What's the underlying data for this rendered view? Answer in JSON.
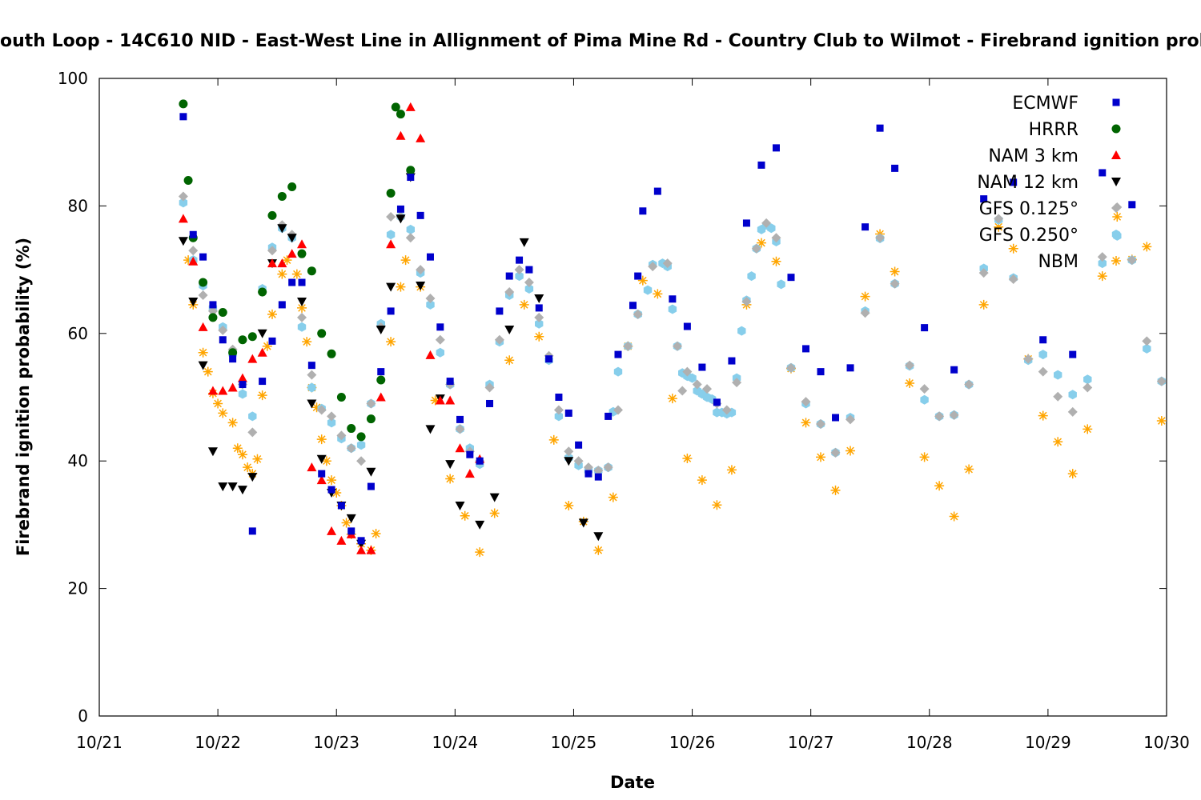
{
  "chart_data": {
    "type": "scatter",
    "title": "outh Loop - 14C610 NID - East-West Line in Allignment of Pima Mine Rd - Country Club to Wilmot - Firebrand ignition probability",
    "xlabel": "Date",
    "ylabel": "Firebrand ignition probability (%)",
    "x_units": "hours since 10/21 00:00",
    "xlim": [
      0,
      216
    ],
    "ylim": [
      0,
      100
    ],
    "x_ticks": [
      {
        "value": 0,
        "label": "10/21"
      },
      {
        "value": 24,
        "label": "10/22"
      },
      {
        "value": 48,
        "label": "10/23"
      },
      {
        "value": 72,
        "label": "10/24"
      },
      {
        "value": 96,
        "label": "10/25"
      },
      {
        "value": 120,
        "label": "10/26"
      },
      {
        "value": 144,
        "label": "10/27"
      },
      {
        "value": 168,
        "label": "10/28"
      },
      {
        "value": 192,
        "label": "10/29"
      },
      {
        "value": 216,
        "label": "10/30"
      }
    ],
    "y_ticks": [
      {
        "value": 0,
        "label": "0"
      },
      {
        "value": 20,
        "label": "20"
      },
      {
        "value": 40,
        "label": "40"
      },
      {
        "value": 60,
        "label": "60"
      },
      {
        "value": 80,
        "label": "80"
      },
      {
        "value": 100,
        "label": "100"
      }
    ],
    "grid": false,
    "legend_position": "top-right",
    "series": [
      {
        "name": "ECMWF",
        "marker": "square",
        "color": "#0000cc",
        "grid": {
          "start": 17,
          "step": 2,
          "values": [
            94,
            75.5,
            72,
            64.5,
            59,
            56,
            52,
            29,
            52.5,
            58.8,
            64.5,
            68,
            68,
            55,
            38,
            35.5,
            33,
            29,
            27.5,
            36,
            54,
            63.5,
            79.5,
            84.5,
            78.5,
            72,
            61,
            52.5,
            46.5,
            41,
            40,
            49,
            63.5,
            69,
            71.5,
            70,
            64,
            56,
            50,
            47.5,
            42.5,
            38,
            37.5,
            47,
            56.7
          ]
        },
        "points": [
          [
            108,
            64.4
          ],
          [
            109,
            69
          ],
          [
            110,
            79.2
          ],
          [
            113,
            82.3
          ],
          [
            116,
            65.4
          ],
          [
            119,
            61.1
          ],
          [
            122,
            54.7
          ],
          [
            125,
            49.2
          ],
          [
            128,
            55.7
          ],
          [
            131,
            77.3
          ],
          [
            134,
            86.4
          ],
          [
            137,
            89.1
          ],
          [
            140,
            68.8
          ],
          [
            143,
            57.6
          ],
          [
            146,
            54
          ],
          [
            149,
            46.8
          ],
          [
            152,
            54.6
          ],
          [
            155,
            76.7
          ],
          [
            158,
            92.2
          ],
          [
            161,
            85.9
          ],
          [
            167,
            60.9
          ],
          [
            173,
            54.3
          ],
          [
            179,
            81.1
          ],
          [
            185,
            83.7
          ],
          [
            191,
            59
          ],
          [
            197,
            56.7
          ],
          [
            203,
            85.2
          ],
          [
            209,
            80.2
          ]
        ]
      },
      {
        "name": "HRRR",
        "marker": "circle",
        "color": "#006400",
        "grid": {
          "start": 17,
          "step": 2,
          "values": [
            96,
            75,
            68,
            62.5,
            63.3,
            57,
            59,
            59.5,
            66.5,
            78.5,
            81.5,
            83,
            72.5,
            69.8,
            60,
            56.8,
            50,
            45.1,
            43.8,
            46.6,
            52.7,
            82,
            94.4,
            85.6
          ]
        },
        "points": [
          [
            18,
            84
          ],
          [
            60,
            95.5
          ]
        ]
      },
      {
        "name": "NAM 3 km",
        "marker": "triangle-up",
        "color": "#ff0000",
        "grid": {
          "start": 17,
          "step": 2,
          "values": [
            78,
            71.3,
            61,
            51,
            51,
            51.5,
            53,
            56,
            57,
            71,
            71,
            72.5,
            74,
            39,
            37,
            29,
            27.5,
            28.5,
            26,
            26,
            50,
            74,
            91,
            95.5,
            90.6,
            56.6,
            49.5,
            49.5,
            42,
            38,
            40.3
          ]
        },
        "points": []
      },
      {
        "name": "NAM 12 km",
        "marker": "triangle-down",
        "color": "#000000",
        "grid": {
          "start": 17,
          "step": 2,
          "values": [
            74.5,
            65,
            55,
            41.5,
            36,
            36,
            35.5,
            37.5,
            60,
            71,
            76.5,
            75,
            65,
            49,
            40.3,
            35,
            33,
            31,
            27,
            38.3,
            60.6,
            67.3,
            78,
            84.5
          ]
        },
        "points": [
          [
            65,
            67.5
          ],
          [
            67,
            45
          ],
          [
            69,
            49.8
          ],
          [
            71,
            39.5
          ],
          [
            73,
            33
          ],
          [
            77,
            30
          ],
          [
            80,
            34.3
          ],
          [
            83,
            60.6
          ],
          [
            86,
            74.3
          ],
          [
            89,
            65.5
          ],
          [
            95,
            40
          ],
          [
            98,
            30.3
          ],
          [
            101,
            28.2
          ]
        ]
      },
      {
        "name": "GFS 0.125°",
        "marker": "diamond",
        "color": "#b0b0b0",
        "grid": {
          "start": 17,
          "step": 2,
          "values": [
            81.5,
            73,
            66,
            63.5,
            60.5,
            57.5,
            52,
            44.5,
            66.5,
            73,
            77,
            75.5,
            62.5,
            53.5,
            48,
            47,
            44,
            42,
            40,
            49,
            61,
            78.3,
            78.3,
            75,
            70,
            65.5,
            59,
            52,
            45,
            41.5,
            40,
            51.5,
            59,
            66.5,
            70,
            68,
            62.5,
            56.5,
            48,
            41.5,
            40,
            39,
            38.5,
            39,
            48
          ]
        },
        "points": [
          [
            107,
            58
          ],
          [
            109,
            63
          ],
          [
            112,
            70.5
          ],
          [
            115,
            71
          ],
          [
            117,
            58
          ],
          [
            118,
            51
          ],
          [
            119,
            54
          ],
          [
            121,
            52
          ],
          [
            123,
            51.3
          ],
          [
            125,
            49
          ],
          [
            127,
            48
          ],
          [
            129,
            52.3
          ],
          [
            131,
            65
          ],
          [
            133,
            73.3
          ],
          [
            135,
            77.3
          ],
          [
            137,
            75
          ],
          [
            140,
            54.6
          ],
          [
            143,
            49.3
          ],
          [
            146,
            45.8
          ],
          [
            149,
            41.3
          ],
          [
            152,
            46.5
          ],
          [
            155,
            63.2
          ],
          [
            158,
            75
          ],
          [
            161,
            67.8
          ],
          [
            164,
            55
          ],
          [
            167,
            51.3
          ],
          [
            170,
            47
          ],
          [
            173,
            47.2
          ],
          [
            176,
            52
          ],
          [
            179,
            69.5
          ],
          [
            182,
            78
          ],
          [
            185,
            68.5
          ],
          [
            188,
            56
          ],
          [
            191,
            54
          ],
          [
            194,
            50.1
          ],
          [
            197,
            47.7
          ],
          [
            200,
            51.5
          ],
          [
            203,
            72
          ],
          [
            206,
            79.8
          ],
          [
            209,
            71.5
          ],
          [
            212,
            58.8
          ],
          [
            215,
            52.5
          ]
        ]
      },
      {
        "name": "GFS 0.250°",
        "marker": "pentagon",
        "color": "#87ceeb",
        "grid": {
          "start": 17,
          "step": 2,
          "values": [
            80.5,
            71.5,
            67.5,
            64,
            61,
            56.8,
            50.5,
            47,
            67,
            73.5,
            76.5,
            75,
            61,
            51.5,
            48.2,
            46,
            43.5,
            42,
            42.5,
            49,
            61.5,
            75.5,
            78.3,
            76.3,
            69.5,
            64.5,
            57,
            52,
            45,
            42,
            39.5,
            52,
            58.7,
            66,
            69,
            67,
            61.5,
            55.8,
            47,
            40.5,
            39.3,
            38.5,
            38.5,
            39,
            54
          ]
        },
        "points": [
          [
            104,
            47.7
          ],
          [
            107,
            58
          ],
          [
            109,
            63
          ],
          [
            111,
            66.8
          ],
          [
            112,
            70.8
          ],
          [
            114,
            71
          ],
          [
            115,
            70.5
          ],
          [
            116,
            63.8
          ],
          [
            117,
            58
          ],
          [
            118,
            53.8
          ],
          [
            119,
            53.3
          ],
          [
            120,
            53
          ],
          [
            121,
            51
          ],
          [
            122,
            50.5
          ],
          [
            123,
            50
          ],
          [
            124,
            49.7
          ],
          [
            125,
            47.6
          ],
          [
            126,
            47.6
          ],
          [
            127,
            47.4
          ],
          [
            128,
            47.6
          ],
          [
            129,
            53
          ],
          [
            130,
            60.4
          ],
          [
            131,
            65.2
          ],
          [
            132,
            69
          ],
          [
            133,
            73.3
          ],
          [
            134,
            76.3
          ],
          [
            135,
            77
          ],
          [
            136,
            76.5
          ],
          [
            137,
            74.4
          ],
          [
            138,
            67.7
          ],
          [
            140,
            54.6
          ],
          [
            143,
            49
          ],
          [
            146,
            45.8
          ],
          [
            149,
            41.3
          ],
          [
            152,
            46.8
          ],
          [
            155,
            63.5
          ],
          [
            158,
            74.9
          ],
          [
            161,
            67.8
          ],
          [
            164,
            54.9
          ],
          [
            167,
            49.6
          ],
          [
            170,
            47
          ],
          [
            173,
            47.2
          ],
          [
            176,
            52
          ],
          [
            179,
            70.2
          ],
          [
            182,
            77.8
          ],
          [
            185,
            68.7
          ],
          [
            188,
            55.8
          ],
          [
            191,
            56.7
          ],
          [
            194,
            53.5
          ],
          [
            197,
            50.4
          ],
          [
            200,
            52.8
          ],
          [
            203,
            71
          ],
          [
            206,
            75.3
          ],
          [
            209,
            71.5
          ],
          [
            212,
            57.6
          ],
          [
            215,
            52.5
          ]
        ]
      },
      {
        "name": "NBM",
        "marker": "asterisk",
        "color": "#ffa500",
        "grid": null,
        "points": [
          [
            18,
            71.5
          ],
          [
            19,
            64.5
          ],
          [
            21,
            57
          ],
          [
            22,
            54
          ],
          [
            23,
            50.6
          ],
          [
            24,
            49
          ],
          [
            25,
            47.5
          ],
          [
            27,
            46
          ],
          [
            28,
            42
          ],
          [
            29,
            41
          ],
          [
            30,
            39
          ],
          [
            31,
            38
          ],
          [
            32,
            40.3
          ],
          [
            33,
            50.3
          ],
          [
            34,
            58
          ],
          [
            35,
            63
          ],
          [
            37,
            69.3
          ],
          [
            38,
            71.5
          ],
          [
            40,
            69.3
          ],
          [
            41,
            64
          ],
          [
            42,
            58.7
          ],
          [
            43,
            51.5
          ],
          [
            44,
            48.4
          ],
          [
            45,
            43.4
          ],
          [
            46,
            40
          ],
          [
            47,
            37
          ],
          [
            48,
            35
          ],
          [
            49,
            33
          ],
          [
            50,
            30.3
          ],
          [
            51,
            28.5
          ],
          [
            53,
            27
          ],
          [
            55,
            26
          ],
          [
            56,
            28.6
          ],
          [
            59,
            58.7
          ],
          [
            61,
            67.3
          ],
          [
            62,
            71.5
          ],
          [
            65,
            67.3
          ],
          [
            68,
            49.5
          ],
          [
            71,
            37.2
          ],
          [
            74,
            31.4
          ],
          [
            77,
            25.7
          ],
          [
            80,
            31.8
          ],
          [
            83,
            55.8
          ],
          [
            86,
            64.5
          ],
          [
            89,
            59.5
          ],
          [
            92,
            43.3
          ],
          [
            95,
            33
          ],
          [
            98,
            30.5
          ],
          [
            101,
            26
          ],
          [
            104,
            34.3
          ],
          [
            107,
            58
          ],
          [
            110,
            68.3
          ],
          [
            113,
            66.2
          ],
          [
            116,
            49.8
          ],
          [
            119,
            40.4
          ],
          [
            122,
            37
          ],
          [
            125,
            33.1
          ],
          [
            128,
            38.6
          ],
          [
            131,
            64.5
          ],
          [
            134,
            74.2
          ],
          [
            137,
            71.3
          ],
          [
            140,
            54.5
          ],
          [
            143,
            46
          ],
          [
            146,
            40.6
          ],
          [
            149,
            35.4
          ],
          [
            152,
            41.6
          ],
          [
            155,
            65.8
          ],
          [
            158,
            75.6
          ],
          [
            161,
            69.7
          ],
          [
            164,
            52.2
          ],
          [
            167,
            40.6
          ],
          [
            170,
            36.1
          ],
          [
            173,
            31.3
          ],
          [
            176,
            38.7
          ],
          [
            179,
            64.5
          ],
          [
            182,
            76.7
          ],
          [
            185,
            73.3
          ],
          [
            188,
            56
          ],
          [
            191,
            47.1
          ],
          [
            194,
            43
          ],
          [
            197,
            38
          ],
          [
            200,
            45
          ],
          [
            203,
            69
          ],
          [
            206,
            78.3
          ],
          [
            209,
            71.6
          ],
          [
            212,
            73.6
          ],
          [
            215,
            46.3
          ]
        ]
      }
    ]
  }
}
